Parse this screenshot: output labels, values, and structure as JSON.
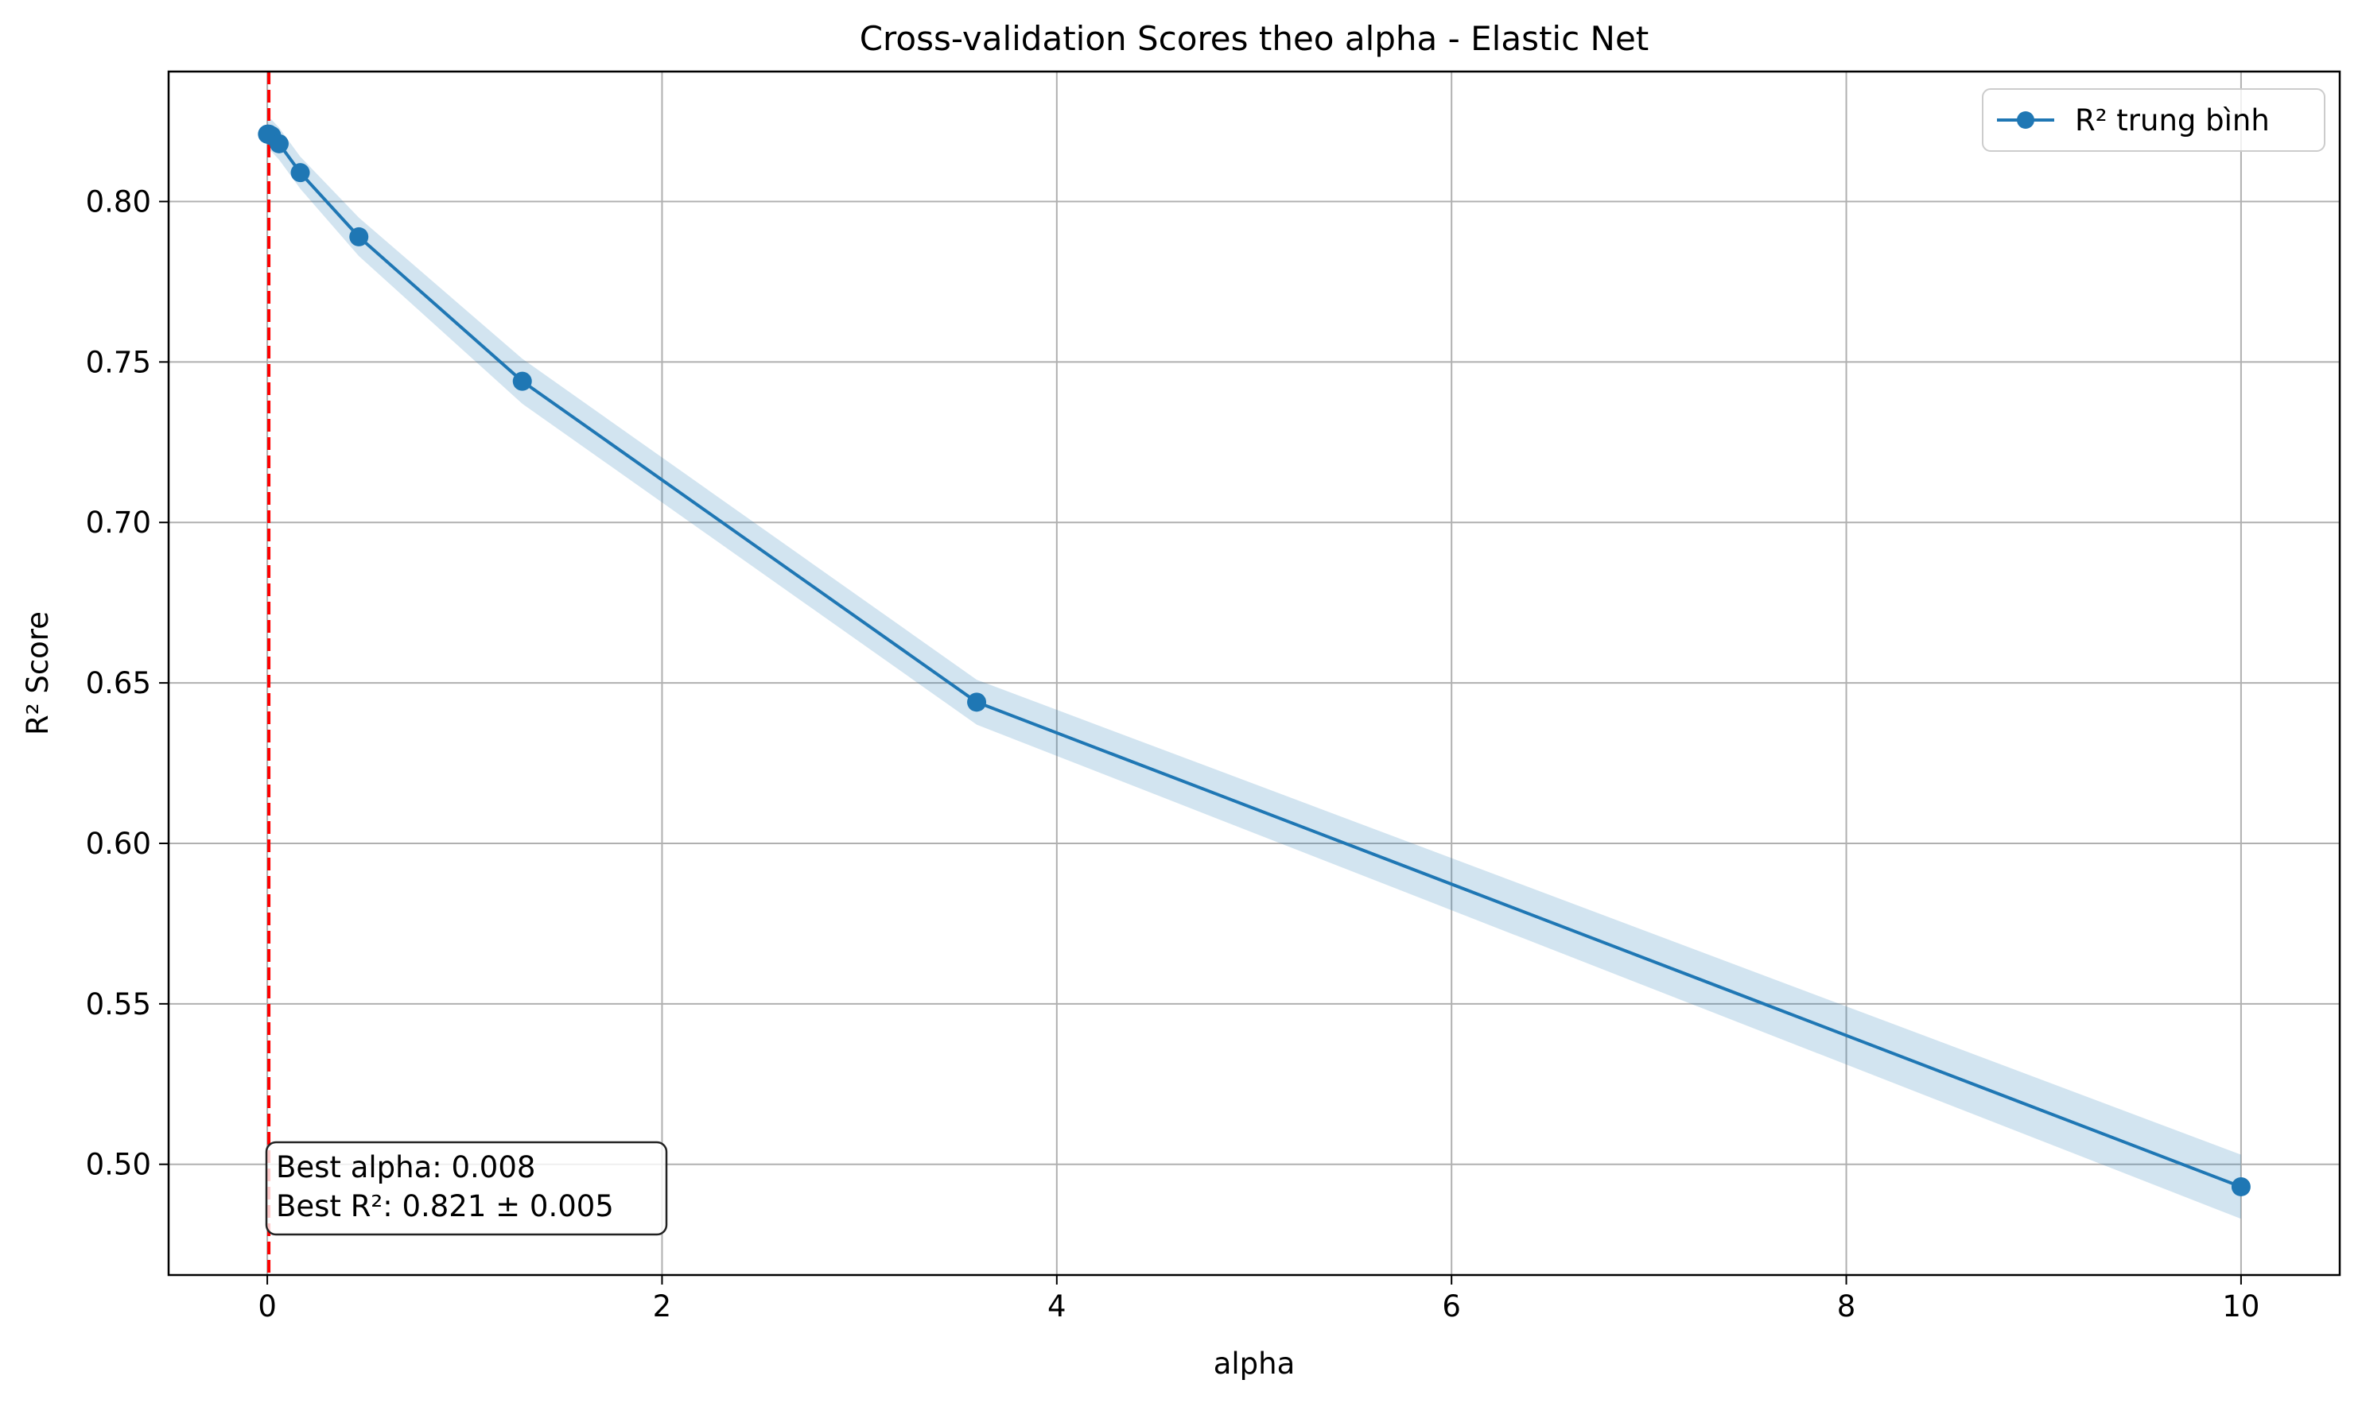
{
  "chart_data": {
    "type": "line",
    "title": "Cross-validation Scores theo alpha - Elastic Net",
    "xlabel": "alpha",
    "ylabel": "R² Score",
    "xlim": [
      -0.5,
      10.5
    ],
    "ylim": [
      0.4655,
      0.8405
    ],
    "xticks": [
      0,
      2,
      4,
      6,
      8,
      10
    ],
    "xtick_labels": [
      "0",
      "2",
      "4",
      "6",
      "8",
      "10"
    ],
    "yticks": [
      0.5,
      0.55,
      0.6,
      0.65,
      0.7,
      0.75,
      0.8
    ],
    "ytick_labels": [
      "0.50",
      "0.55",
      "0.60",
      "0.65",
      "0.70",
      "0.75",
      "0.80"
    ],
    "grid": true,
    "legend_position": "top-right",
    "series": [
      {
        "name": "R² trung bình",
        "color": "#1f77b4",
        "x": [
          0.001,
          0.003,
          0.008,
          0.022,
          0.06,
          0.167,
          0.464,
          1.292,
          3.594,
          10.0
        ],
        "y": [
          0.821,
          0.821,
          0.821,
          0.8205,
          0.818,
          0.809,
          0.789,
          0.744,
          0.644,
          0.493
        ],
        "std": [
          0.005,
          0.005,
          0.005,
          0.005,
          0.005,
          0.005,
          0.006,
          0.007,
          0.007,
          0.01
        ]
      }
    ],
    "best_line": {
      "x": 0.008,
      "color": "#ff0000"
    },
    "annotation": {
      "line1": "Best alpha: 0.008",
      "line2": "Best R²: 0.821 ± 0.005"
    }
  }
}
